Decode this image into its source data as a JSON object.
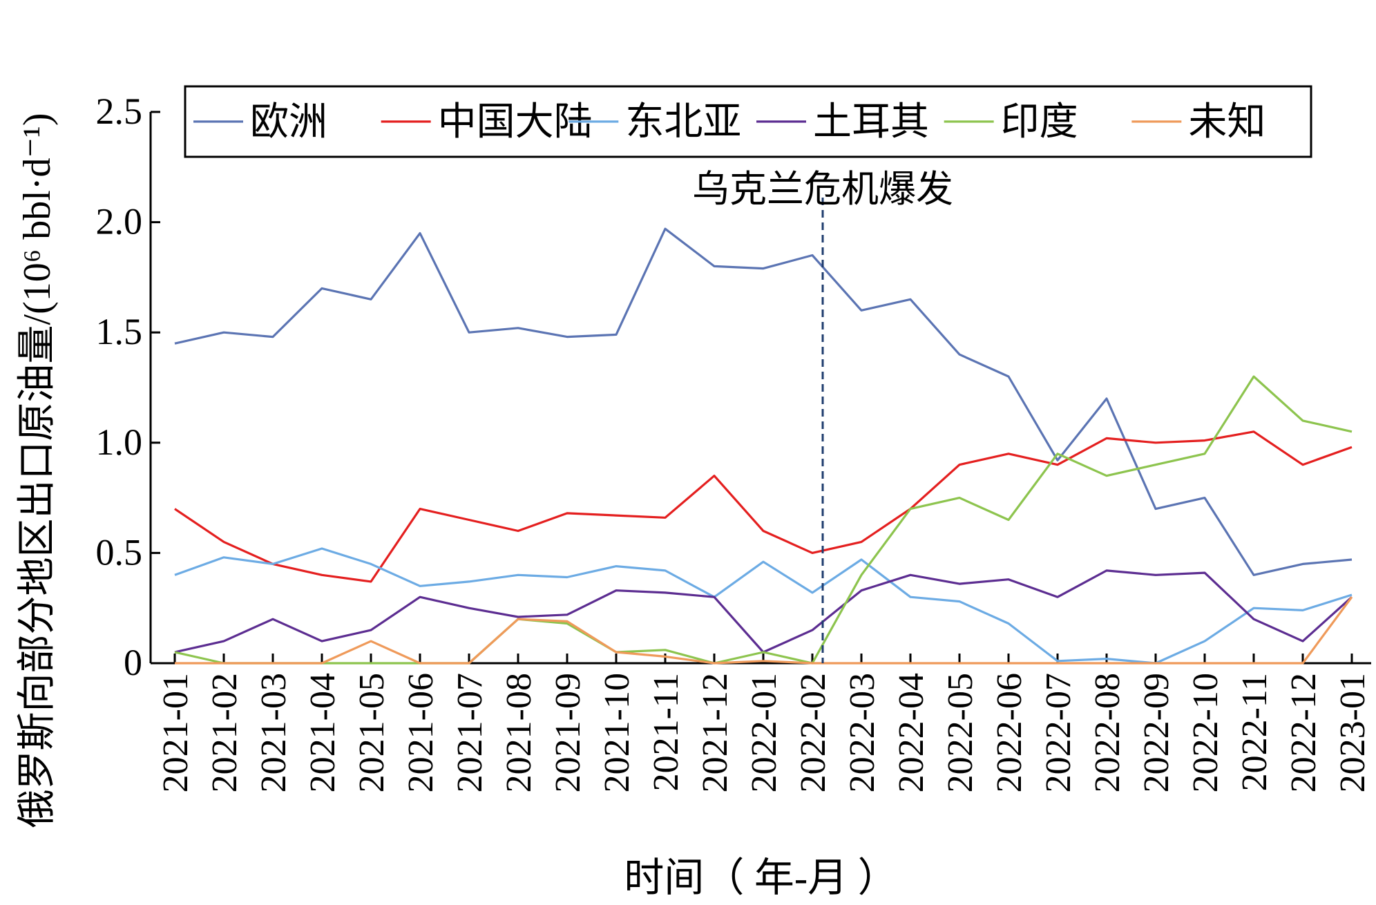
{
  "chart_data": {
    "type": "line",
    "title": "",
    "xlabel": "时间（ 年-月 ）",
    "ylabel": "俄罗斯向部分地区出口原油量/(10⁶ bbl·d⁻¹)",
    "ylim": [
      0,
      2.5
    ],
    "yticks": [
      "0",
      "0.5",
      "1.0",
      "1.5",
      "2.0",
      "2.5"
    ],
    "grid": false,
    "legend": "top",
    "categories": [
      "2021-01",
      "2021-02",
      "2021-03",
      "2021-04",
      "2021-05",
      "2021-06",
      "2021-07",
      "2021-08",
      "2021-09",
      "2021-10",
      "2021-11",
      "2021-12",
      "2022-01",
      "2022-02",
      "2022-03",
      "2022-04",
      "2022-05",
      "2022-06",
      "2022-07",
      "2022-08",
      "2022-09",
      "2022-10",
      "2022-11",
      "2022-12",
      "2023-01"
    ],
    "series": [
      {
        "name": "欧洲",
        "color": "#5b74b3",
        "values": [
          1.45,
          1.5,
          1.48,
          1.7,
          1.65,
          1.95,
          1.5,
          1.52,
          1.48,
          1.49,
          1.97,
          1.8,
          1.79,
          1.85,
          1.6,
          1.65,
          1.4,
          1.3,
          0.92,
          1.2,
          0.7,
          0.75,
          0.4,
          0.45,
          0.47
        ]
      },
      {
        "name": "中国大陆",
        "color": "#e41f1f",
        "values": [
          0.7,
          0.55,
          0.45,
          0.4,
          0.37,
          0.7,
          0.65,
          0.6,
          0.68,
          0.67,
          0.66,
          0.85,
          0.6,
          0.5,
          0.55,
          0.7,
          0.9,
          0.95,
          0.9,
          1.02,
          1.0,
          1.01,
          1.05,
          0.9,
          0.98
        ]
      },
      {
        "name": "东北亚",
        "color": "#6cabe4",
        "values": [
          0.4,
          0.48,
          0.45,
          0.52,
          0.45,
          0.35,
          0.37,
          0.4,
          0.39,
          0.44,
          0.42,
          0.3,
          0.46,
          0.32,
          0.47,
          0.3,
          0.28,
          0.18,
          0.01,
          0.02,
          0.0,
          0.1,
          0.25,
          0.24,
          0.31
        ]
      },
      {
        "name": "土耳其",
        "color": "#5c2d91",
        "values": [
          0.05,
          0.1,
          0.2,
          0.1,
          0.15,
          0.3,
          0.25,
          0.21,
          0.22,
          0.33,
          0.32,
          0.3,
          0.05,
          0.15,
          0.33,
          0.4,
          0.36,
          0.38,
          0.3,
          0.42,
          0.4,
          0.41,
          0.2,
          0.1,
          0.3
        ]
      },
      {
        "name": "印度",
        "color": "#8dc44e",
        "values": [
          0.05,
          0.0,
          0.0,
          0.0,
          0.0,
          0.0,
          0.0,
          0.2,
          0.18,
          0.05,
          0.06,
          0.0,
          0.05,
          0.0,
          0.4,
          0.7,
          0.75,
          0.65,
          0.95,
          0.85,
          0.9,
          0.95,
          1.3,
          1.1,
          1.05
        ]
      },
      {
        "name": "未知",
        "color": "#ef9a5a",
        "values": [
          0.0,
          0.0,
          0.0,
          0.0,
          0.1,
          0.0,
          0.0,
          0.2,
          0.19,
          0.05,
          0.03,
          0.0,
          0.01,
          0.0,
          0.0,
          0.0,
          0.0,
          0.0,
          0.0,
          0.0,
          0.0,
          0.0,
          0.0,
          0.0,
          0.3
        ]
      }
    ],
    "annotation": {
      "text": "乌克兰危机爆发",
      "category": "2022-02"
    }
  }
}
